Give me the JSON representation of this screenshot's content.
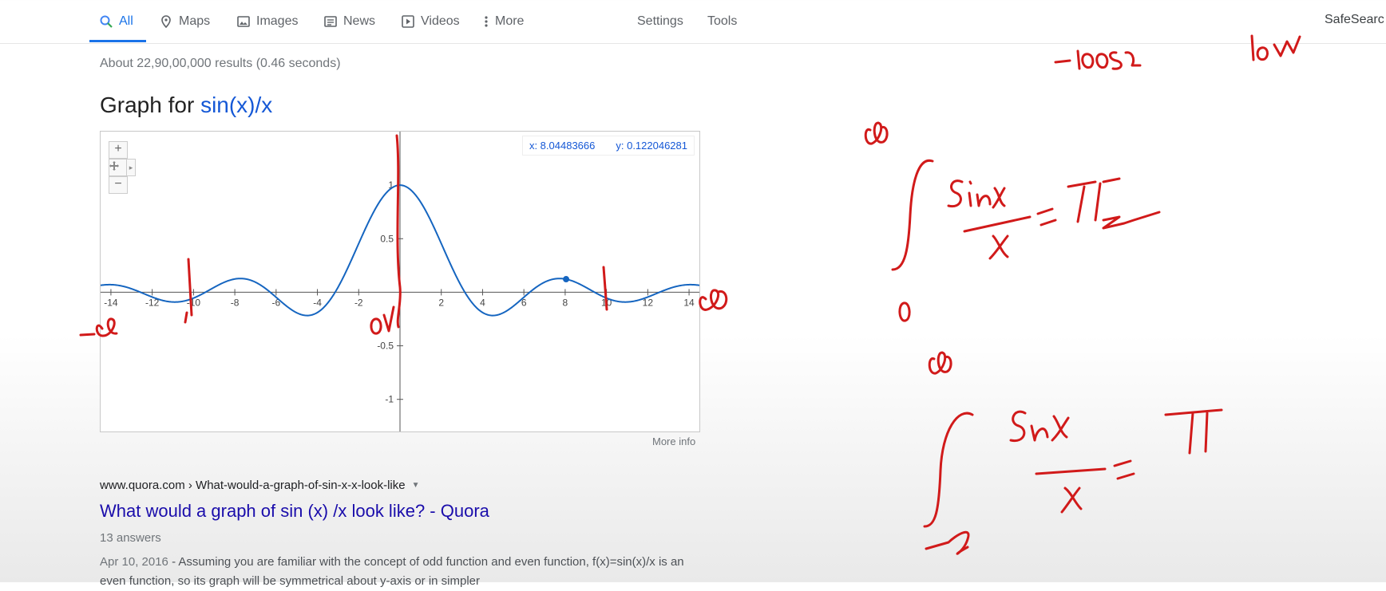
{
  "nav": {
    "tabs": [
      {
        "label": "All",
        "icon": "search-icon"
      },
      {
        "label": "Maps",
        "icon": "map-pin-icon"
      },
      {
        "label": "Images",
        "icon": "image-icon"
      },
      {
        "label": "News",
        "icon": "newspaper-icon"
      },
      {
        "label": "Videos",
        "icon": "play-icon"
      },
      {
        "label": "More",
        "icon": "kebab-icon"
      }
    ],
    "settings_label": "Settings",
    "tools_label": "Tools",
    "safesearch_label": "SafeSearc",
    "accent": "#1a73e8"
  },
  "stats": "About 22,90,00,000 results (0.46 seconds)",
  "graph": {
    "title_prefix": "Graph for",
    "function": "sin(x)/x",
    "readout_x": "x: 8.04483666",
    "readout_y": "y: 0.122046281",
    "more_info": "More info",
    "zoom_in": "+",
    "zoom_out": "−"
  },
  "chart_data": {
    "type": "line",
    "function": "sin(x)/x",
    "xlim": [
      -14.5,
      14.5
    ],
    "ylim": [
      -1.3,
      1.5
    ],
    "x_ticks": [
      -14,
      -12,
      -10,
      -8,
      -6,
      -4,
      -2,
      2,
      4,
      6,
      8,
      10,
      12,
      14
    ],
    "y_ticks": [
      -1,
      -0.5,
      0.5,
      1
    ],
    "highlight_point": {
      "x": 8.04483666,
      "y": 0.122046281
    },
    "line_color": "#1565c0",
    "grid": false
  },
  "result": {
    "url": "www.quora.com › What-would-a-graph-of-sin-x-x-look-like",
    "title": "What would a graph of sin (x) /x look like? - Quora",
    "answers": "13 answers",
    "date": "Apr 10, 2016",
    "snippet": " - Assuming you are familiar with the concept of odd function and even function, f(x)=sin(x)/x is an even function, so its graph will be symmetrical about y-axis or in simpler"
  },
  "annotations": {
    "ink_color": "#d11a1a"
  }
}
